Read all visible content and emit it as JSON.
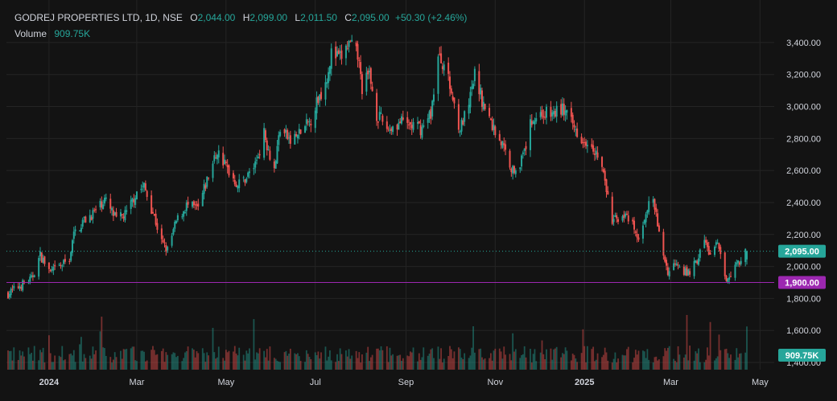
{
  "header": {
    "symbol": "GODREJ PROPERTIES LTD, 1D, NSE",
    "open_label": "O",
    "open": "2,044.00",
    "high_label": "H",
    "high": "2,099.00",
    "low_label": "L",
    "low": "2,011.50",
    "close_label": "C",
    "close": "2,095.00",
    "change": "+50.30 (+2.46%)",
    "volume_label": "Volume",
    "volume": "909.75K"
  },
  "colors": {
    "background": "#131313",
    "up": "#26a69a",
    "down": "#ef5350",
    "grid": "#242424",
    "text": "#d1d4dc",
    "support_line": "#9c27b0",
    "price_line": "#26a69a"
  },
  "chart_data": {
    "type": "candlestick",
    "grid": true,
    "ylim": [
      1400,
      3500
    ],
    "y_ticks": [
      "3,400.00",
      "3,200.00",
      "3,000.00",
      "2,800.00",
      "2,600.00",
      "2,400.00",
      "2,200.00",
      "2,000.00",
      "1,800.00",
      "1,600.00",
      "1,400.00"
    ],
    "y_tick_values": [
      3400,
      3200,
      3000,
      2800,
      2600,
      2400,
      2200,
      2000,
      1800,
      1600,
      1400
    ],
    "x_ticks": [
      {
        "label": "2024",
        "date": "2024-01-01",
        "bold": true
      },
      {
        "label": "Mar",
        "date": "2024-03-01",
        "bold": false
      },
      {
        "label": "May",
        "date": "2024-05-01",
        "bold": false
      },
      {
        "label": "Jul",
        "date": "2024-07-01",
        "bold": false
      },
      {
        "label": "Sep",
        "date": "2024-09-01",
        "bold": false
      },
      {
        "label": "Nov",
        "date": "2024-11-01",
        "bold": false
      },
      {
        "label": "2025",
        "date": "2025-01-01",
        "bold": true
      },
      {
        "label": "Mar",
        "date": "2025-03-01",
        "bold": false
      },
      {
        "label": "May",
        "date": "2025-05-01",
        "bold": false
      }
    ],
    "date_range": [
      "2023-12-04",
      "2025-04-22"
    ],
    "close_path": [
      [
        "2023-12-04",
        1830
      ],
      [
        "2023-12-12",
        1880
      ],
      [
        "2023-12-20",
        1920
      ],
      [
        "2023-12-26",
        2070
      ],
      [
        "2024-01-02",
        1960
      ],
      [
        "2024-01-10",
        2010
      ],
      [
        "2024-01-15",
        2050
      ],
      [
        "2024-01-18",
        2200
      ],
      [
        "2024-01-24",
        2280
      ],
      [
        "2024-02-01",
        2340
      ],
      [
        "2024-02-08",
        2420
      ],
      [
        "2024-02-16",
        2290
      ],
      [
        "2024-02-23",
        2330
      ],
      [
        "2024-03-01",
        2470
      ],
      [
        "2024-03-06",
        2500
      ],
      [
        "2024-03-13",
        2310
      ],
      [
        "2024-03-18",
        2150
      ],
      [
        "2024-03-22",
        2100
      ],
      [
        "2024-03-28",
        2280
      ],
      [
        "2024-04-04",
        2380
      ],
      [
        "2024-04-12",
        2360
      ],
      [
        "2024-04-18",
        2540
      ],
      [
        "2024-04-25",
        2720
      ],
      [
        "2024-05-02",
        2610
      ],
      [
        "2024-05-09",
        2510
      ],
      [
        "2024-05-15",
        2560
      ],
      [
        "2024-05-21",
        2640
      ],
      [
        "2024-05-27",
        2830
      ],
      [
        "2024-06-03",
        2610
      ],
      [
        "2024-06-07",
        2870
      ],
      [
        "2024-06-14",
        2780
      ],
      [
        "2024-06-20",
        2830
      ],
      [
        "2024-06-27",
        2900
      ],
      [
        "2024-07-03",
        3050
      ],
      [
        "2024-07-08",
        3150
      ],
      [
        "2024-07-12",
        3330
      ],
      [
        "2024-07-18",
        3300
      ],
      [
        "2024-07-24",
        3390
      ],
      [
        "2024-07-30",
        3320
      ],
      [
        "2024-08-02",
        3120
      ],
      [
        "2024-08-07",
        3200
      ],
      [
        "2024-08-12",
        2950
      ],
      [
        "2024-08-20",
        2860
      ],
      [
        "2024-08-28",
        2900
      ],
      [
        "2024-09-05",
        2880
      ],
      [
        "2024-09-12",
        2860
      ],
      [
        "2024-09-18",
        2960
      ],
      [
        "2024-09-23",
        3300
      ],
      [
        "2024-09-27",
        3270
      ],
      [
        "2024-10-03",
        3050
      ],
      [
        "2024-10-08",
        2860
      ],
      [
        "2024-10-14",
        3000
      ],
      [
        "2024-10-18",
        3200
      ],
      [
        "2024-10-24",
        3010
      ],
      [
        "2024-10-30",
        2880
      ],
      [
        "2024-11-06",
        2760
      ],
      [
        "2024-11-13",
        2600
      ],
      [
        "2024-11-20",
        2680
      ],
      [
        "2024-11-26",
        2920
      ],
      [
        "2024-12-03",
        2960
      ],
      [
        "2024-12-10",
        2950
      ],
      [
        "2024-12-17",
        2990
      ],
      [
        "2024-12-24",
        2880
      ],
      [
        "2024-12-31",
        2800
      ],
      [
        "2025-01-06",
        2780
      ],
      [
        "2025-01-13",
        2620
      ],
      [
        "2025-01-20",
        2280
      ],
      [
        "2025-01-27",
        2330
      ],
      [
        "2025-02-03",
        2250
      ],
      [
        "2025-02-07",
        2150
      ],
      [
        "2025-02-12",
        2350
      ],
      [
        "2025-02-17",
        2420
      ],
      [
        "2025-02-21",
        2200
      ],
      [
        "2025-02-27",
        1960
      ],
      [
        "2025-03-05",
        2040
      ],
      [
        "2025-03-12",
        1950
      ],
      [
        "2025-03-18",
        2020
      ],
      [
        "2025-03-24",
        2160
      ],
      [
        "2025-03-28",
        2070
      ],
      [
        "2025-04-02",
        2140
      ],
      [
        "2025-04-07",
        1920
      ],
      [
        "2025-04-14",
        2000
      ],
      [
        "2025-04-22",
        2095
      ]
    ],
    "volume_ylim": [
      0,
      2200000
    ],
    "current_price": {
      "value": 2095,
      "label": "2,095.00"
    },
    "support_level": {
      "value": 1900,
      "label": "1,900.00"
    },
    "volume_badge": "909.75K"
  }
}
